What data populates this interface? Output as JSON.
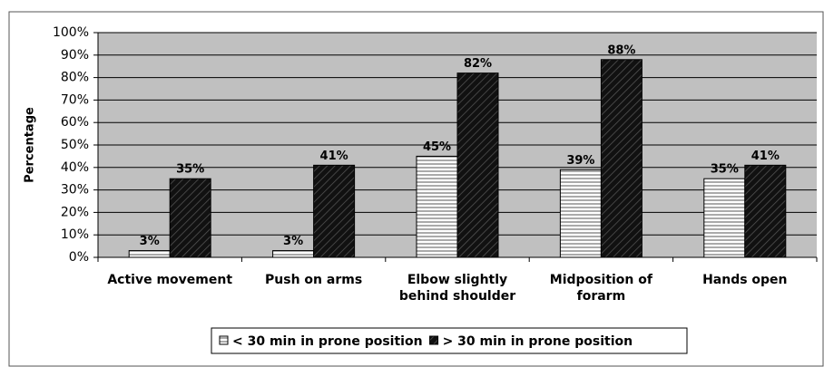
{
  "chart_data": {
    "type": "bar",
    "y_label": "Percentage",
    "categories": [
      "Active movement",
      "Push on arms",
      "Elbow slightly behind shoulder",
      "Midposition of forarm",
      "Hands open"
    ],
    "series": [
      {
        "name": "< 30 min in prone position",
        "color": "#ffffff",
        "values": [
          3,
          3,
          45,
          39,
          35
        ],
        "value_labels": [
          "3%",
          "3%",
          "45%",
          "39%",
          "35%"
        ]
      },
      {
        "name": "> 30 min in prone position",
        "color": "#000000",
        "values": [
          35,
          41,
          82,
          88,
          41
        ],
        "value_labels": [
          "35%",
          "41%",
          "82%",
          "88%",
          "41%"
        ]
      }
    ],
    "ylim": [
      0,
      100
    ],
    "yticks": [
      {
        "value": 0,
        "label": "0%"
      },
      {
        "value": 10,
        "label": "10%"
      },
      {
        "value": 20,
        "label": "20%"
      },
      {
        "value": 30,
        "label": "30%"
      },
      {
        "value": 40,
        "label": "40%"
      },
      {
        "value": 50,
        "label": "50%"
      },
      {
        "value": 60,
        "label": "60%"
      },
      {
        "value": 70,
        "label": "70%"
      },
      {
        "value": 80,
        "label": "80%"
      },
      {
        "value": 90,
        "label": "90%"
      },
      {
        "value": 100,
        "label": "100%"
      }
    ],
    "grid": true,
    "legend": "bottom"
  }
}
